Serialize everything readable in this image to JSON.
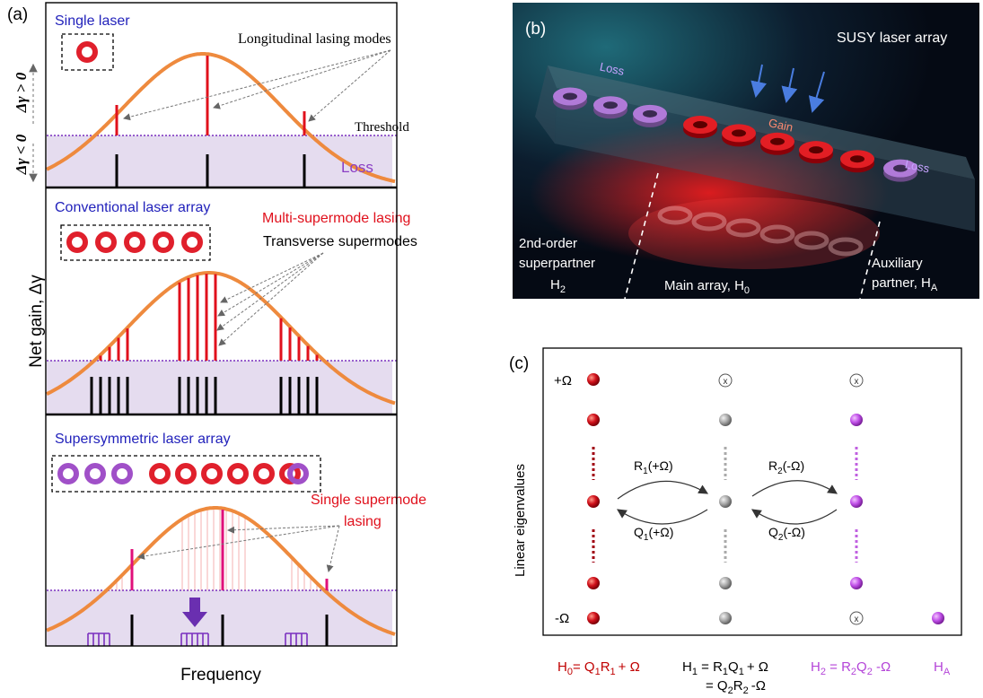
{
  "panel_a": {
    "label": "(a)",
    "yaxis": "Net gain, Δγ",
    "xaxis": "Frequency",
    "dg_pos": "Δγ > 0",
    "dg_neg": "Δγ < 0",
    "single": {
      "title": "Single laser",
      "annotation": "Longitudinal lasing modes",
      "threshold": "Threshold",
      "loss": "Loss"
    },
    "conventional": {
      "title": "Conventional laser array",
      "annotation1": "Multi-supermode lasing",
      "annotation2": "Transverse supermodes"
    },
    "susy": {
      "title": "Supersymmetric laser array",
      "annotation_line1": "Single supermode",
      "annotation_line2": "lasing"
    }
  },
  "panel_b": {
    "label": "(b)",
    "title": "SUSY laser array",
    "loss_left": "Loss",
    "gain": "Gain",
    "loss_right": "Loss",
    "sec_line1": "2nd-order",
    "sec_line2": "superpartner",
    "sec_h": "H",
    "sec_sub": "2",
    "main": "Main array, H",
    "main_sub": "0",
    "aux_line1": "Auxiliary",
    "aux_line2": "partner, H",
    "aux_sub": "A"
  },
  "panel_c": {
    "label": "(c)",
    "yaxis": "Linear eigenvalues",
    "plus": "+Ω",
    "minus": "-Ω",
    "r1_main": "R",
    "r1_sub": "1",
    "r1_arg": "(+Ω)",
    "q1_main": "Q",
    "q1_sub": "1",
    "q1_arg": "(+Ω)",
    "r2_main": "R",
    "r2_sub": "2",
    "r2_arg": "(-Ω)",
    "q2_main": "Q",
    "q2_sub": "2",
    "q2_arg": "(-Ω)",
    "eq_h0": {
      "a": "H",
      "a_sub": "0",
      "b": "= Q",
      "b_sub": "1",
      "c": "R",
      "c_sub": "1",
      "d": "+ Ω"
    },
    "eq_h1": {
      "a": "H",
      "a_sub": "1",
      "b": " = R",
      "b_sub": "1",
      "c": "Q",
      "c_sub": "1",
      "d": "+ Ω"
    },
    "eq_h1b": {
      "b": "= Q",
      "b_sub": "2",
      "c": "R",
      "c_sub": "2",
      "d": "-Ω"
    },
    "eq_h2": {
      "a": "H",
      "a_sub": "2",
      "b": " = R",
      "b_sub": "2",
      "c": "Q",
      "c_sub": "2",
      "d": " -Ω"
    },
    "eq_ha": {
      "a": "H",
      "a_sub": "A"
    }
  },
  "colors": {
    "red": "#d9001b",
    "orange": "#ee8a3e",
    "purple": "#7a2fbf",
    "loss_fill": "#e5dcef",
    "violet_text": "#b444d8",
    "dark_red_text": "#c00000"
  }
}
